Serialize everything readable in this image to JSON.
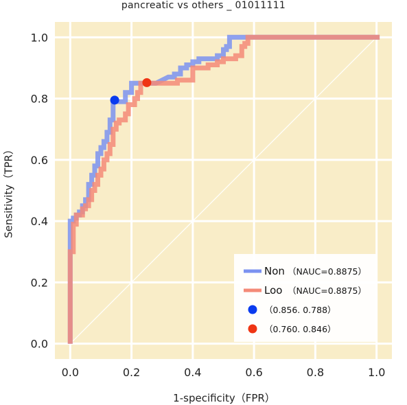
{
  "chart_data": {
    "type": "line",
    "title": "pancreatic vs others _ 01011111",
    "xlabel": "1-specificity（FPR）",
    "ylabel": "Sensitivity（TPR）",
    "xlim": [
      -0.05,
      1.05
    ],
    "ylim": [
      -0.05,
      1.05
    ],
    "xticks": [
      "0.0",
      "0.2",
      "0.4",
      "0.6",
      "0.8",
      "1.0"
    ],
    "yticks": [
      "0.0",
      "0.2",
      "0.4",
      "0.6",
      "0.8",
      "1.0"
    ],
    "grid": true,
    "background": "#f9edc8",
    "legend_position": "bottom-right",
    "diagonal": {
      "x": [
        0,
        1
      ],
      "y": [
        0,
        1
      ],
      "color": "#ffffff"
    },
    "series": [
      {
        "name": "Non",
        "auc_label": "（NAUC=0.8875）",
        "color": "#7b92f0",
        "x": [
          0.0,
          0.0,
          0.0,
          0.0,
          0.01,
          0.01,
          0.02,
          0.02,
          0.03,
          0.03,
          0.04,
          0.04,
          0.05,
          0.05,
          0.06,
          0.06,
          0.07,
          0.07,
          0.08,
          0.08,
          0.09,
          0.09,
          0.1,
          0.1,
          0.11,
          0.11,
          0.12,
          0.12,
          0.13,
          0.13,
          0.14,
          0.14,
          0.16,
          0.18,
          0.18,
          0.2,
          0.2,
          0.22,
          0.22,
          0.25,
          0.28,
          0.32,
          0.34,
          0.34,
          0.36,
          0.36,
          0.38,
          0.38,
          0.4,
          0.4,
          0.42,
          0.42,
          0.44,
          0.46,
          0.48,
          0.48,
          0.5,
          0.5,
          0.51,
          0.51,
          0.52,
          0.52,
          0.54,
          0.56,
          0.58,
          0.6,
          0.7,
          0.8,
          0.9,
          1.01
        ],
        "y": [
          0.0,
          0.2,
          0.32,
          0.4,
          0.4,
          0.41,
          0.41,
          0.42,
          0.42,
          0.43,
          0.43,
          0.45,
          0.45,
          0.47,
          0.47,
          0.52,
          0.52,
          0.55,
          0.55,
          0.58,
          0.58,
          0.62,
          0.62,
          0.64,
          0.64,
          0.66,
          0.66,
          0.69,
          0.69,
          0.73,
          0.73,
          0.79,
          0.79,
          0.79,
          0.82,
          0.82,
          0.85,
          0.85,
          0.85,
          0.85,
          0.85,
          0.87,
          0.87,
          0.88,
          0.88,
          0.9,
          0.9,
          0.91,
          0.91,
          0.92,
          0.92,
          0.93,
          0.93,
          0.93,
          0.93,
          0.94,
          0.94,
          0.96,
          0.96,
          0.97,
          0.97,
          1.0,
          1.0,
          1.0,
          1.0,
          1.0,
          1.0,
          1.0,
          1.0,
          1.0
        ]
      },
      {
        "name": "Loo",
        "auc_label": "（NAUC=0.8875）",
        "color": "#f48a78",
        "x": [
          0.0,
          0.0,
          0.0,
          0.01,
          0.01,
          0.02,
          0.02,
          0.04,
          0.04,
          0.05,
          0.05,
          0.06,
          0.06,
          0.07,
          0.07,
          0.08,
          0.08,
          0.09,
          0.09,
          0.1,
          0.1,
          0.11,
          0.11,
          0.12,
          0.12,
          0.13,
          0.13,
          0.14,
          0.14,
          0.15,
          0.15,
          0.16,
          0.16,
          0.18,
          0.18,
          0.19,
          0.19,
          0.21,
          0.21,
          0.22,
          0.22,
          0.23,
          0.23,
          0.25,
          0.3,
          0.35,
          0.35,
          0.4,
          0.4,
          0.45,
          0.45,
          0.48,
          0.48,
          0.5,
          0.5,
          0.54,
          0.54,
          0.56,
          0.56,
          0.57,
          0.57,
          0.58,
          0.58,
          0.7,
          0.85,
          1.01
        ],
        "y": [
          0.0,
          0.17,
          0.3,
          0.3,
          0.39,
          0.39,
          0.42,
          0.42,
          0.44,
          0.44,
          0.45,
          0.45,
          0.47,
          0.47,
          0.5,
          0.5,
          0.52,
          0.52,
          0.55,
          0.55,
          0.57,
          0.57,
          0.6,
          0.6,
          0.62,
          0.62,
          0.65,
          0.65,
          0.7,
          0.7,
          0.72,
          0.72,
          0.73,
          0.73,
          0.75,
          0.75,
          0.78,
          0.78,
          0.8,
          0.8,
          0.82,
          0.82,
          0.85,
          0.85,
          0.85,
          0.85,
          0.86,
          0.86,
          0.9,
          0.9,
          0.91,
          0.91,
          0.92,
          0.92,
          0.93,
          0.93,
          0.94,
          0.94,
          0.97,
          0.97,
          0.98,
          0.98,
          1.0,
          1.0,
          1.0,
          1.0
        ]
      }
    ],
    "points": [
      {
        "label": "（0.856. 0.788）",
        "x": 0.145,
        "y": 0.795,
        "color": "#0a3bef"
      },
      {
        "label": "（0.760. 0.846）",
        "x": 0.25,
        "y": 0.852,
        "color": "#ef3514"
      }
    ]
  }
}
